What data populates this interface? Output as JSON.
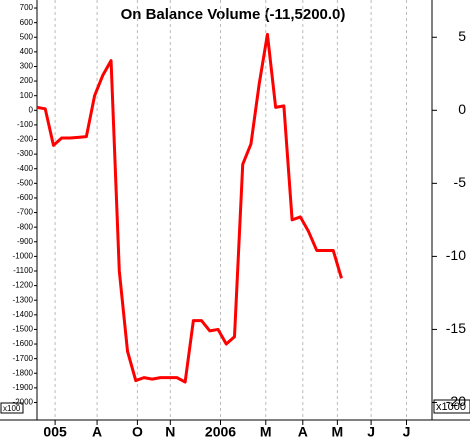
{
  "chart_data": {
    "type": "line",
    "title": "On Balance Volume (-11,5200.0)",
    "left_scale_label": "x100",
    "right_scale_label": "x1000",
    "x": [
      0,
      1,
      2,
      3,
      4,
      5,
      6,
      7,
      8,
      9,
      10,
      11,
      12,
      13,
      14,
      15,
      16,
      17,
      18,
      19,
      20,
      21,
      22,
      23,
      24,
      25,
      26,
      27,
      28,
      29,
      30,
      31,
      32,
      33,
      34,
      35,
      36,
      37
    ],
    "series": [
      {
        "name": "On Balance Volume",
        "color": "#ff0000",
        "values": [
          20,
          10,
          -240,
          -190,
          -190,
          -185,
          -180,
          100,
          240,
          340,
          -1100,
          -1650,
          -1850,
          -1830,
          -1840,
          -1830,
          -1830,
          -1830,
          -1860,
          -1440,
          -1440,
          -1510,
          -1500,
          -1600,
          -1550,
          -370,
          -230,
          180,
          520,
          20,
          30,
          -750,
          -730,
          -830,
          -960,
          -960,
          -960,
          -1150
        ]
      }
    ],
    "xlim": [
      0,
      48
    ],
    "xticks": [
      {
        "value": 2.2,
        "label": "005"
      },
      {
        "value": 7.3,
        "label": "A"
      },
      {
        "value": 12.2,
        "label": "O"
      },
      {
        "value": 16.2,
        "label": "N"
      },
      {
        "value": 22.3,
        "label": "2006"
      },
      {
        "value": 27.8,
        "label": "M"
      },
      {
        "value": 32.3,
        "label": "A"
      },
      {
        "value": 36.5,
        "label": "M"
      },
      {
        "value": 40.6,
        "label": "J"
      },
      {
        "value": 44.9,
        "label": "J"
      }
    ],
    "ylim": [
      -2120,
      755
    ],
    "yticks": [
      700,
      600,
      500,
      400,
      300,
      200,
      100,
      0,
      -100,
      -200,
      -300,
      -400,
      -500,
      -600,
      -700,
      -800,
      -900,
      -1000,
      -1100,
      -1200,
      -1300,
      -1400,
      -1500,
      -1600,
      -1700,
      -1800,
      -1900,
      -2000
    ],
    "y2lim": [
      -21.2,
      7.55
    ],
    "y2ticks": [
      5,
      0,
      -5,
      -10,
      -15,
      -20
    ],
    "grid": true
  }
}
